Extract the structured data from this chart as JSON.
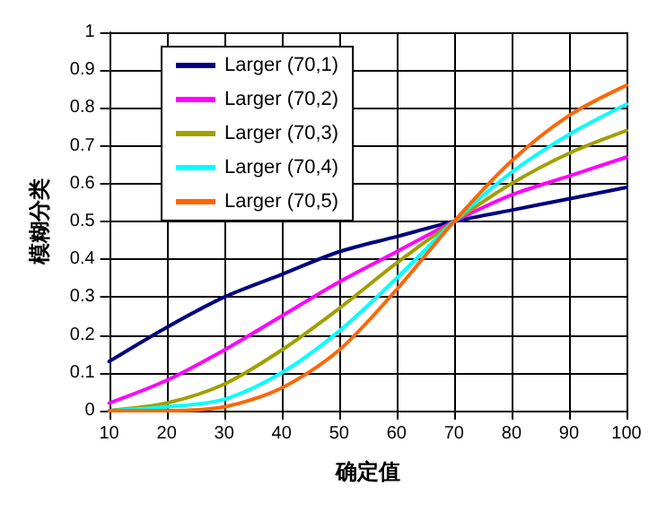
{
  "chart_data": {
    "type": "line",
    "xlabel": "确定值",
    "ylabel": "模糊分类",
    "x": [
      10,
      20,
      30,
      40,
      50,
      60,
      70,
      80,
      90,
      100
    ],
    "series": [
      {
        "name": "Larger (70,1)",
        "color": "#000080",
        "values": [
          0.13,
          0.22,
          0.3,
          0.36,
          0.42,
          0.46,
          0.5,
          0.53,
          0.56,
          0.59
        ]
      },
      {
        "name": "Larger (70,2)",
        "color": "#ff00ff",
        "values": [
          0.02,
          0.08,
          0.16,
          0.25,
          0.34,
          0.42,
          0.5,
          0.57,
          0.62,
          0.67
        ]
      },
      {
        "name": "Larger (70,3)",
        "color": "#a0a000",
        "values": [
          0.0,
          0.02,
          0.07,
          0.16,
          0.27,
          0.39,
          0.5,
          0.6,
          0.68,
          0.74
        ]
      },
      {
        "name": "Larger (70,4)",
        "color": "#00ffff",
        "values": [
          0.0,
          0.01,
          0.03,
          0.1,
          0.21,
          0.35,
          0.5,
          0.63,
          0.73,
          0.81
        ]
      },
      {
        "name": "Larger (70,5)",
        "color": "#ff6600",
        "values": [
          0.0,
          0.0,
          0.01,
          0.06,
          0.16,
          0.32,
          0.5,
          0.66,
          0.78,
          0.86
        ]
      }
    ],
    "xlim": [
      10,
      100
    ],
    "xticks": [
      10,
      20,
      30,
      40,
      50,
      60,
      70,
      80,
      90,
      100
    ],
    "ylim": [
      0,
      1
    ],
    "yticks": [
      0,
      0.1,
      0.2,
      0.3,
      0.4,
      0.5,
      0.6,
      0.7,
      0.8,
      0.9,
      1
    ],
    "grid": true,
    "legend": "top left",
    "marker": "none",
    "line_style": "solid"
  }
}
